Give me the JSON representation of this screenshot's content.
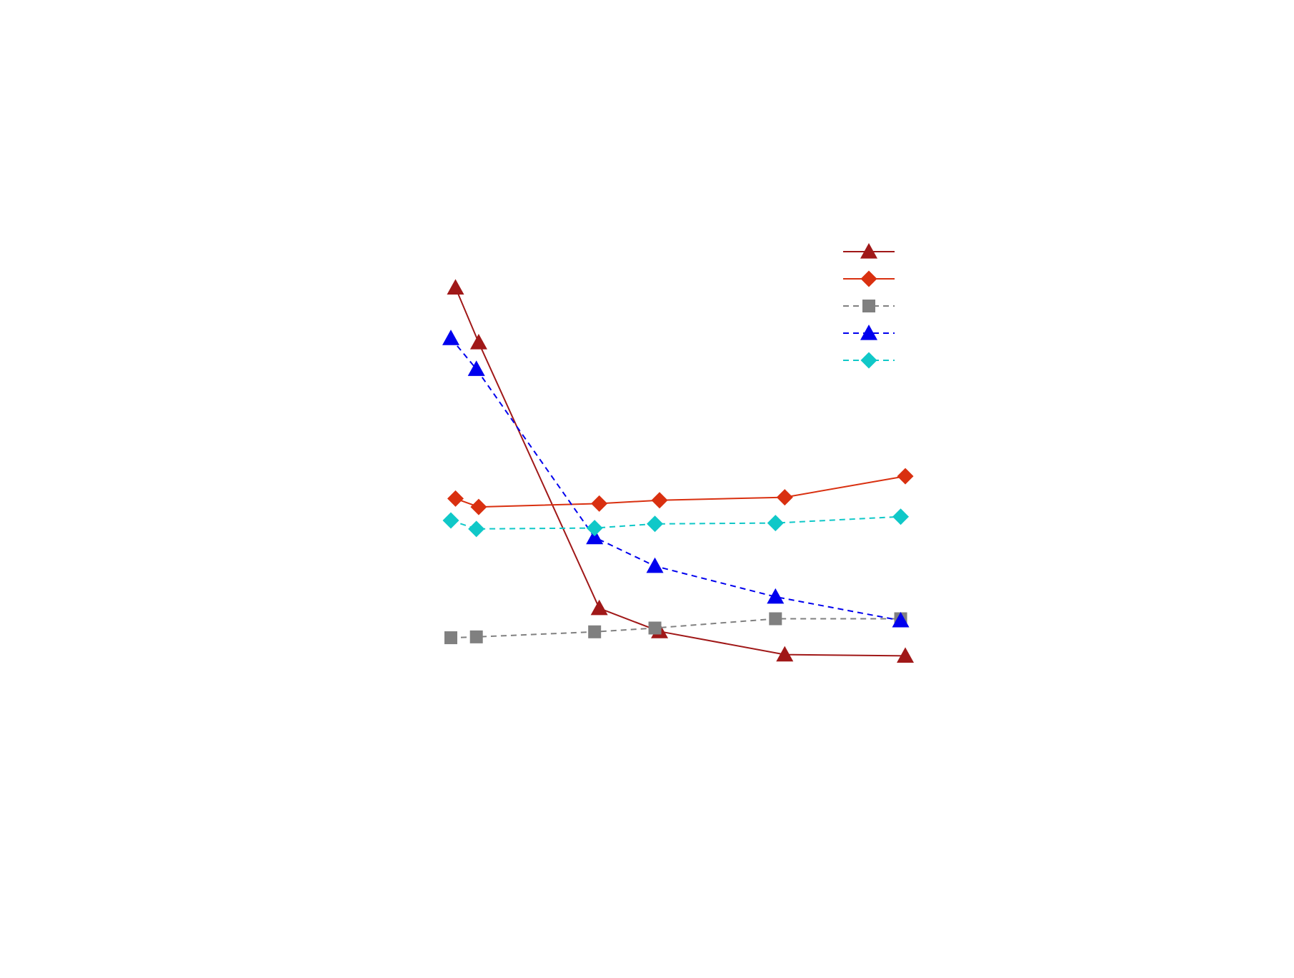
{
  "chart_data": {
    "type": "line",
    "title": "",
    "xlabel": "",
    "ylabel": "",
    "xlim": [
      0,
      10
    ],
    "ylim": [
      0,
      10
    ],
    "grid": false,
    "legend_position": "top-right",
    "series": [
      {
        "color": "#a01818",
        "line_style": "solid",
        "marker": "triangle",
        "x": [
          0.1,
          0.6,
          3.2,
          4.5,
          7.2,
          9.8
        ],
        "y": [
          8.35,
          7.05,
          0.75,
          0.2,
          -0.35,
          -0.38
        ]
      },
      {
        "color": "#d93010",
        "line_style": "solid",
        "marker": "diamond",
        "x": [
          0.1,
          0.6,
          3.2,
          4.5,
          7.2,
          9.8
        ],
        "y": [
          3.35,
          3.15,
          3.23,
          3.31,
          3.38,
          3.88
        ]
      },
      {
        "color": "#808080",
        "line_style": "dashed",
        "marker": "square",
        "x": [
          0.0,
          0.55,
          3.1,
          4.4,
          7.0,
          9.7
        ],
        "y": [
          0.05,
          0.07,
          0.19,
          0.28,
          0.5,
          0.5
        ]
      },
      {
        "color": "#0000ee",
        "line_style": "dashed",
        "marker": "triangle",
        "x": [
          0.0,
          0.55,
          3.1,
          4.4,
          7.0,
          9.7
        ],
        "y": [
          7.15,
          6.42,
          2.43,
          1.75,
          1.02,
          0.46
        ]
      },
      {
        "color": "#10c8c8",
        "line_style": "dashed",
        "marker": "diamond",
        "x": [
          0.0,
          0.55,
          3.1,
          4.4,
          7.0,
          9.7
        ],
        "y": [
          2.83,
          2.63,
          2.65,
          2.75,
          2.77,
          2.92
        ]
      }
    ]
  }
}
